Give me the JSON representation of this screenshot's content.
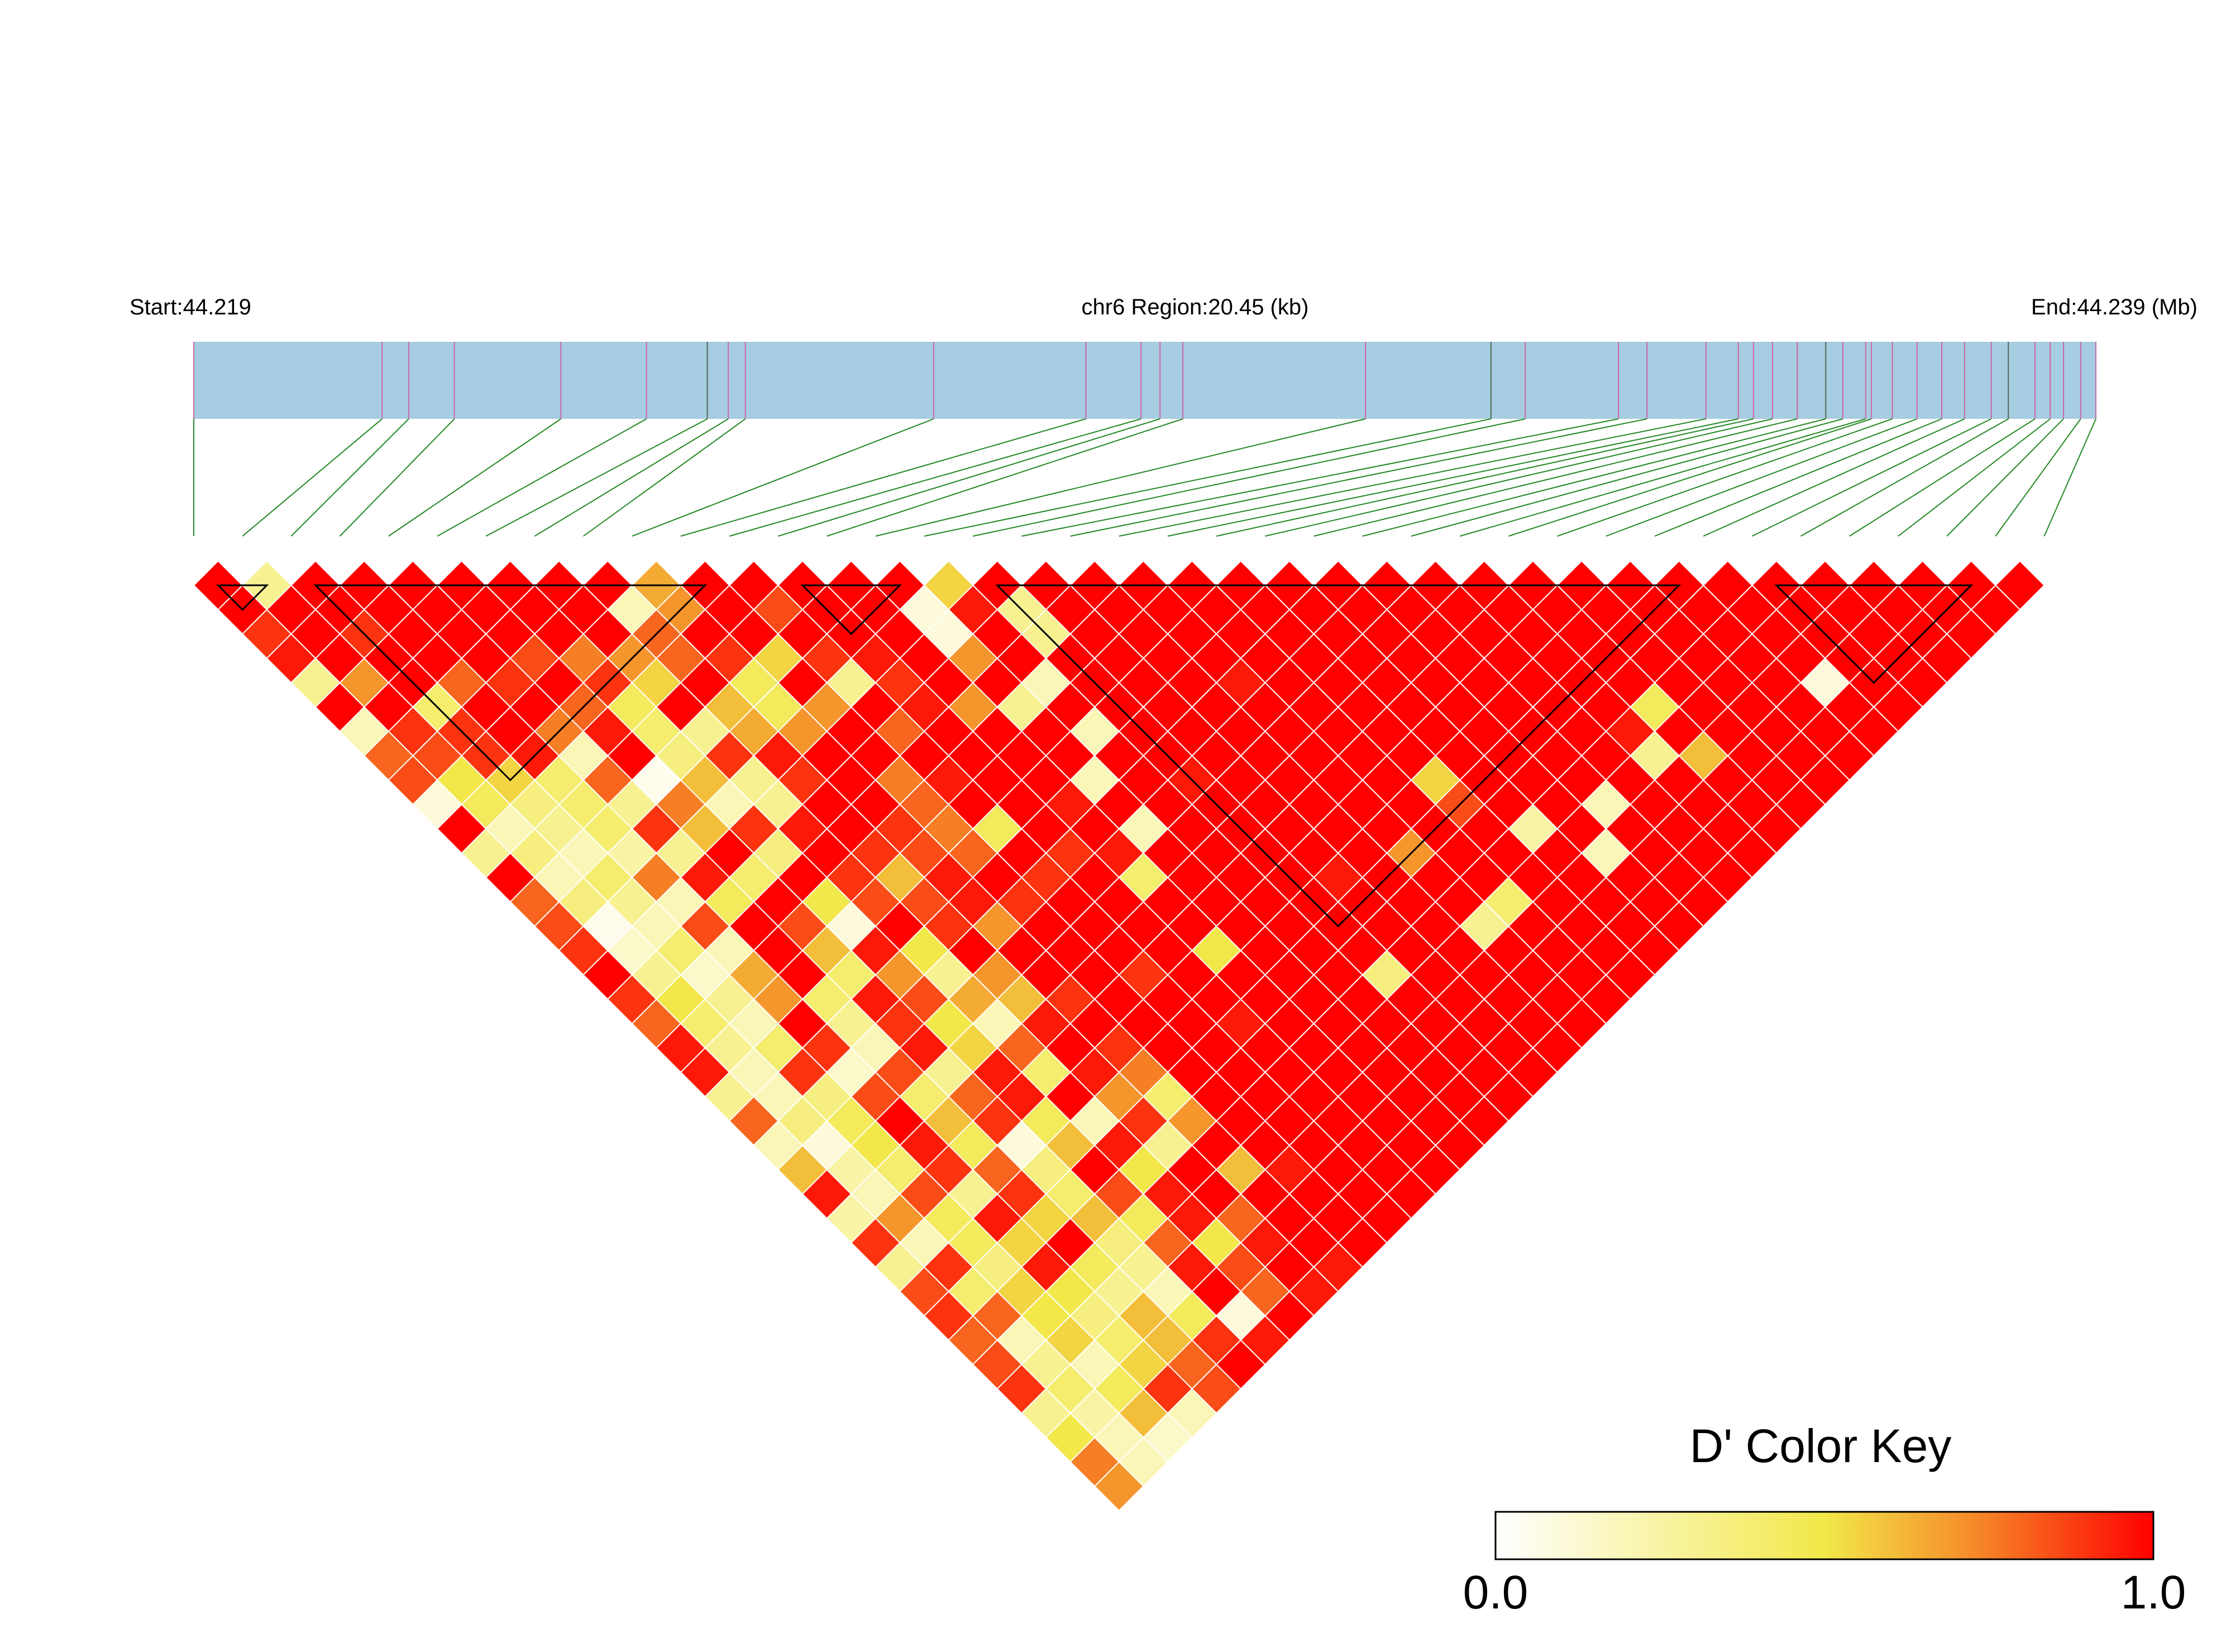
{
  "header": {
    "start_label": "Start:44.219",
    "region_label": "chr6 Region:20.45 (kb)",
    "end_label": "End:44.239 (Mb)"
  },
  "chart_data": {
    "type": "heatmap",
    "title": "",
    "xlabel": "",
    "ylabel": "",
    "chromosome": "chr6",
    "region_start_mb": 44.219,
    "region_end_mb": 44.239,
    "region_size_kb": 20.45,
    "snp_count": 39,
    "snp_positions_fraction": [
      0,
      0.099,
      0.113,
      0.137,
      0.193,
      0.238,
      0.27,
      0.281,
      0.29,
      0.389,
      0.469,
      0.498,
      0.508,
      0.52,
      0.616,
      0.682,
      0.7,
      0.749,
      0.764,
      0.795,
      0.812,
      0.82,
      0.83,
      0.843,
      0.858,
      0.867,
      0.879,
      0.882,
      0.893,
      0.906,
      0.919,
      0.931,
      0.945,
      0.954,
      0.968,
      0.976,
      0.983,
      0.992,
      1.0
    ],
    "ld_metric": "D'",
    "color_scale": {
      "min": 0.0,
      "max": 1.0,
      "stops": [
        "#ffffff",
        "#f2e84a",
        "#f58e2a",
        "#ff0000"
      ]
    },
    "diagonals_dprime": [
      [
        1,
        0.3,
        1,
        1,
        1,
        1,
        1,
        1,
        1,
        0.65,
        1,
        1,
        1,
        1,
        1,
        0.55,
        1,
        1,
        1,
        1,
        1,
        1,
        1,
        1,
        1,
        1,
        1,
        1,
        1,
        1,
        1,
        1,
        1,
        1,
        1,
        1,
        1,
        1
      ],
      [
        1,
        1,
        1,
        1,
        1,
        1,
        1,
        1,
        0.2,
        0.7,
        1,
        0.85,
        1,
        1,
        0.1,
        0.95,
        0.3,
        1,
        1,
        1,
        1,
        1,
        1,
        1,
        1,
        1,
        1,
        1,
        1,
        1,
        1,
        1,
        1,
        1,
        1,
        1,
        1
      ],
      [
        0.9,
        1,
        0.9,
        1,
        1,
        1,
        1,
        1,
        0.8,
        1,
        1,
        1,
        1,
        1,
        0.1,
        1,
        0.3,
        1,
        1,
        1,
        1,
        1,
        1,
        1,
        1,
        1,
        1,
        1,
        1,
        1,
        1,
        1,
        1,
        1,
        1,
        1
      ],
      [
        0.95,
        1,
        1,
        1,
        1,
        0.85,
        0.75,
        0.7,
        0.8,
        0.9,
        0.55,
        0.9,
        0.95,
        1,
        0.7,
        1,
        1,
        1,
        1,
        1,
        1,
        1,
        1,
        1,
        1,
        1,
        1,
        1,
        1,
        1,
        1,
        1,
        1,
        1,
        1
      ],
      [
        0.3,
        0.7,
        1,
        0.8,
        0.9,
        1,
        0.9,
        0.55,
        1,
        0.45,
        1,
        0.3,
        0.9,
        1,
        1,
        0.2,
        1,
        1,
        1,
        0.95,
        1,
        1,
        1,
        1,
        1,
        1,
        1,
        1,
        1,
        1,
        1,
        0.1,
        1,
        1
      ],
      [
        1,
        1,
        0.4,
        1,
        1,
        0.8,
        0.45,
        1,
        0.6,
        0.45,
        0.7,
        1,
        0.95,
        0.7,
        0.3,
        1,
        1,
        1,
        1,
        1,
        1,
        1,
        1,
        1,
        1,
        1,
        1,
        0.45,
        1,
        1,
        1,
        1,
        1
      ],
      [
        0.2,
        0.9,
        0.9,
        1,
        0.75,
        0.95,
        0.4,
        0.3,
        0.65,
        0.7,
        1,
        0.8,
        1,
        1,
        1,
        0.2,
        1,
        1,
        1,
        1,
        1,
        1,
        1,
        1,
        1,
        1,
        0.95,
        1,
        1,
        1,
        1,
        1
      ],
      [
        0.8,
        0.85,
        0.9,
        0.95,
        0.2,
        1,
        0.35,
        0.9,
        0.95,
        1,
        1,
        1,
        1,
        1,
        1,
        1,
        1,
        1,
        1,
        1,
        1,
        1,
        1,
        1,
        1,
        1,
        0.3,
        0.6,
        1,
        1,
        1
      ],
      [
        0.85,
        0.5,
        0.55,
        0.4,
        0.8,
        0.05,
        0.6,
        0.3,
        0.9,
        1,
        0.75,
        0.95,
        1,
        1,
        0.2,
        1,
        0.95,
        1,
        1,
        1,
        1,
        0.55,
        1,
        1,
        1,
        1,
        1,
        1,
        1,
        1
      ],
      [
        0.1,
        0.45,
        0.35,
        0.4,
        0.3,
        0.75,
        0.2,
        0.3,
        1,
        1,
        0.8,
        1,
        1,
        0.95,
        1,
        1,
        1,
        1,
        1,
        1,
        1,
        0.85,
        1,
        1,
        0.2,
        1,
        1,
        1,
        1
      ],
      [
        1,
        0.2,
        0.3,
        0.4,
        0.9,
        0.6,
        0.9,
        0.95,
        1,
        0.9,
        0.75,
        0.45,
        1,
        1,
        0.2,
        1,
        1,
        1,
        1,
        1,
        1,
        1,
        0.25,
        1,
        1,
        1,
        1,
        1
      ],
      [
        0.3,
        0.35,
        0.2,
        0.25,
        0.3,
        1,
        0.35,
        1,
        0.9,
        0.85,
        0.8,
        1,
        0.9,
        0.95,
        1,
        1,
        1,
        1,
        1,
        0.7,
        1,
        1,
        1,
        0.2,
        1,
        1,
        1
      ],
      [
        1,
        0.2,
        0.4,
        0.75,
        0.95,
        0.4,
        1,
        0.9,
        0.6,
        0.95,
        1,
        0.9,
        1,
        0.4,
        1,
        1,
        1,
        0.95,
        1,
        1,
        1,
        1,
        1,
        1,
        1,
        1
      ],
      [
        0.8,
        0.35,
        0.3,
        0.2,
        0.45,
        1,
        0.5,
        0.85,
        0.85,
        0.95,
        0.9,
        1,
        1,
        1,
        1,
        1,
        1,
        1,
        1,
        1,
        0.4,
        1,
        1,
        1,
        1
      ],
      [
        0.85,
        0.05,
        0.2,
        0.85,
        1,
        0.85,
        0.1,
        1,
        0.9,
        0.7,
        1,
        1,
        1,
        1,
        1,
        1,
        1,
        1,
        1,
        0.3,
        1,
        1,
        1,
        1
      ],
      [
        0.9,
        0.15,
        0.4,
        0.2,
        1,
        0.6,
        0.95,
        0.5,
        1,
        1,
        1,
        1,
        1,
        0.5,
        1,
        1,
        1,
        1,
        1,
        1,
        1,
        1,
        1
      ],
      [
        1,
        0.3,
        0.15,
        0.65,
        1,
        0.4,
        0.7,
        0.3,
        0.7,
        1,
        1,
        0.9,
        1,
        1,
        1,
        1,
        0.35,
        1,
        1,
        1,
        1,
        1
      ],
      [
        0.9,
        0.5,
        0.3,
        0.7,
        0.4,
        0.95,
        0.85,
        0.65,
        0.6,
        0.9,
        1,
        1,
        1,
        1,
        1,
        1,
        1,
        1,
        1,
        1,
        1
      ],
      [
        0.8,
        0.4,
        0.2,
        1,
        0.3,
        0.9,
        0.5,
        0.2,
        0.95,
        1,
        1,
        1,
        0.95,
        1,
        1,
        1,
        1,
        1,
        1,
        1
      ],
      [
        0.95,
        0.3,
        0.4,
        0.9,
        0.2,
        0.95,
        0.55,
        0.8,
        1,
        0.9,
        1,
        1,
        1,
        1,
        1,
        1,
        1,
        1,
        1
      ],
      [
        0.95,
        0.2,
        0.9,
        0.15,
        0.85,
        0.3,
        0.95,
        0.4,
        0.95,
        0.75,
        1,
        1,
        1,
        1,
        1,
        1,
        1,
        1
      ],
      [
        0.3,
        0.2,
        0.35,
        0.85,
        0.4,
        0.8,
        0.95,
        1,
        0.7,
        0.4,
        1,
        1,
        1,
        1,
        1,
        1,
        1
      ],
      [
        0.8,
        0.35,
        0.45,
        1,
        0.6,
        0.9,
        0.45,
        0.2,
        0.9,
        0.7,
        1,
        1,
        1,
        1,
        1,
        1
      ],
      [
        0.2,
        0.1,
        0.5,
        0.95,
        0.45,
        0.1,
        0.6,
        0.95,
        0.3,
        1,
        1,
        1,
        1,
        1,
        1
      ],
      [
        0.6,
        0.25,
        0.4,
        0.9,
        0.8,
        0.35,
        1,
        0.5,
        1,
        0.6,
        0.95,
        1,
        1,
        1
      ],
      [
        0.95,
        0.2,
        0.85,
        0.3,
        0.9,
        0.4,
        0.85,
        0.95,
        1,
        1,
        1,
        1,
        1
      ],
      [
        0.25,
        0.7,
        0.45,
        0.95,
        0.55,
        0.6,
        0.45,
        0.95,
        0.8,
        1,
        1,
        1
      ],
      [
        0.9,
        0.2,
        0.45,
        0.55,
        1,
        0.35,
        0.8,
        0.5,
        0.95,
        1,
        1
      ],
      [
        0.3,
        0.9,
        0.35,
        0.95,
        0.45,
        0.3,
        0.95,
        0.85,
        1,
        0.95
      ],
      [
        0.85,
        0.4,
        0.55,
        0.5,
        0.3,
        0.2,
        1,
        0.8,
        0.95
      ],
      [
        0.9,
        0.8,
        0.5,
        0.35,
        0.6,
        0.45,
        0.1,
        1
      ],
      [
        0.8,
        0.2,
        0.55,
        0.4,
        0.6,
        0.9,
        0.95
      ],
      [
        0.85,
        0.3,
        0.2,
        0.55,
        0.8,
        1
      ],
      [
        0.9,
        0.4,
        0.45,
        0.9,
        0.85
      ],
      [
        0.3,
        0.25,
        0.6,
        0.2
      ],
      [
        0.5,
        0.2,
        0.15
      ],
      [
        0.75,
        0.2
      ],
      [
        0.7
      ]
    ],
    "ld_blocks": [
      [
        0,
        1
      ],
      [
        2,
        10
      ],
      [
        12,
        14
      ],
      [
        16,
        30
      ],
      [
        32,
        36
      ]
    ],
    "legend": {
      "title": "D' Color Key",
      "min_label": "0.0",
      "max_label": "1.0",
      "placement": "bottom-right"
    }
  },
  "colors": {
    "region_bar": "#a6cde1",
    "snp_tick": "#cc66aa",
    "snp_tick_alt": "#556655",
    "connector": "#228822",
    "cell_border": "#ffffff",
    "block_outline": "#000000"
  }
}
